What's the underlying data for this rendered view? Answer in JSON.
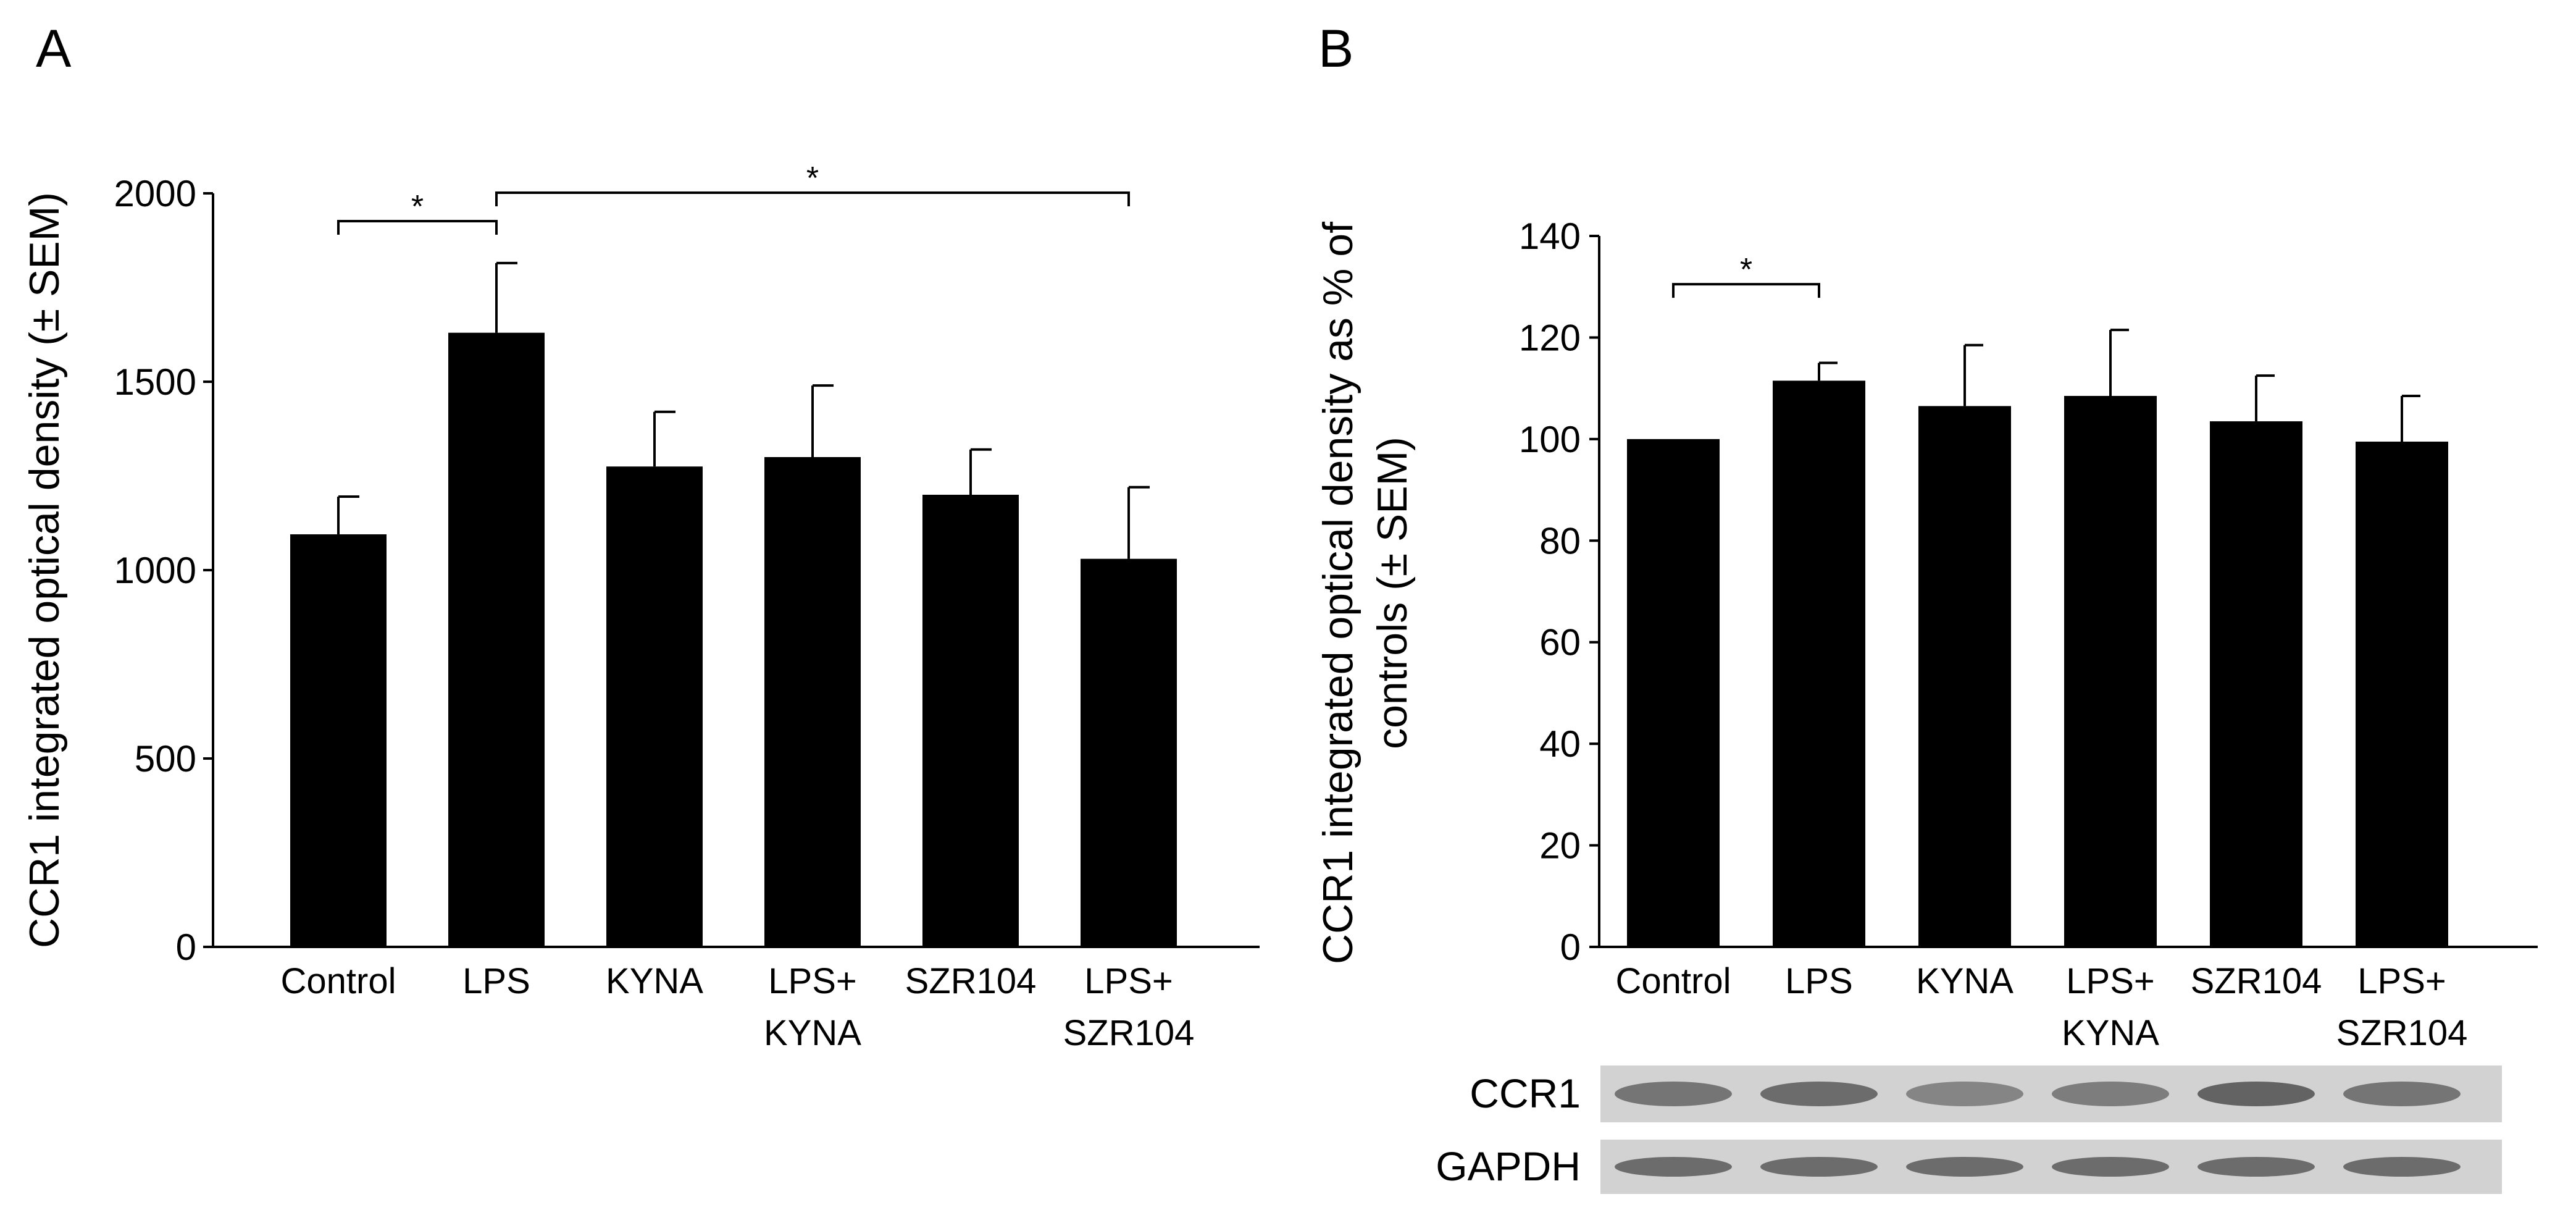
{
  "chart_data": [
    {
      "panel": "A",
      "type": "bar",
      "categories": [
        "Control",
        "LPS",
        "KYNA",
        "LPS+ KYNA",
        "SZR104",
        "LPS+ SZR104"
      ],
      "category_lines": [
        [
          "Control"
        ],
        [
          "LPS"
        ],
        [
          "KYNA"
        ],
        [
          "LPS+",
          "KYNA"
        ],
        [
          "SZR104"
        ],
        [
          "LPS+",
          "SZR104"
        ]
      ],
      "values": [
        1095,
        1630,
        1275,
        1300,
        1200,
        1030
      ],
      "errors": [
        100,
        185,
        145,
        190,
        120,
        190
      ],
      "ylabel": "CCR1 integrated optical density (± SEM)",
      "ylim": [
        0,
        2000
      ],
      "yticks": [
        0,
        500,
        1000,
        1500,
        2000
      ],
      "grid": false,
      "bar_color": "#000000",
      "significance": [
        {
          "from": 0,
          "to": 1,
          "label": "*"
        },
        {
          "from": 1,
          "to": 5,
          "label": "*"
        }
      ]
    },
    {
      "panel": "B",
      "type": "bar",
      "categories": [
        "Control",
        "LPS",
        "KYNA",
        "LPS+ KYNA",
        "SZR104",
        "LPS+ SZR104"
      ],
      "category_lines": [
        [
          "Control"
        ],
        [
          "LPS"
        ],
        [
          "KYNA"
        ],
        [
          "LPS+",
          "KYNA"
        ],
        [
          "SZR104"
        ],
        [
          "LPS+",
          "SZR104"
        ]
      ],
      "values": [
        100,
        111.5,
        106.5,
        108.5,
        103.5,
        99.5
      ],
      "errors": [
        0,
        3.5,
        12,
        13,
        9,
        9
      ],
      "ylabel_lines": [
        "CCR1 integrated optical density as % of",
        "controls (± SEM)"
      ],
      "ylim": [
        0,
        140
      ],
      "yticks": [
        0,
        20,
        40,
        60,
        80,
        100,
        120,
        140
      ],
      "grid": false,
      "bar_color": "#000000",
      "significance": [
        {
          "from": 0,
          "to": 1,
          "label": "*"
        }
      ],
      "blot_labels": [
        "CCR1",
        "GAPDH"
      ]
    }
  ]
}
